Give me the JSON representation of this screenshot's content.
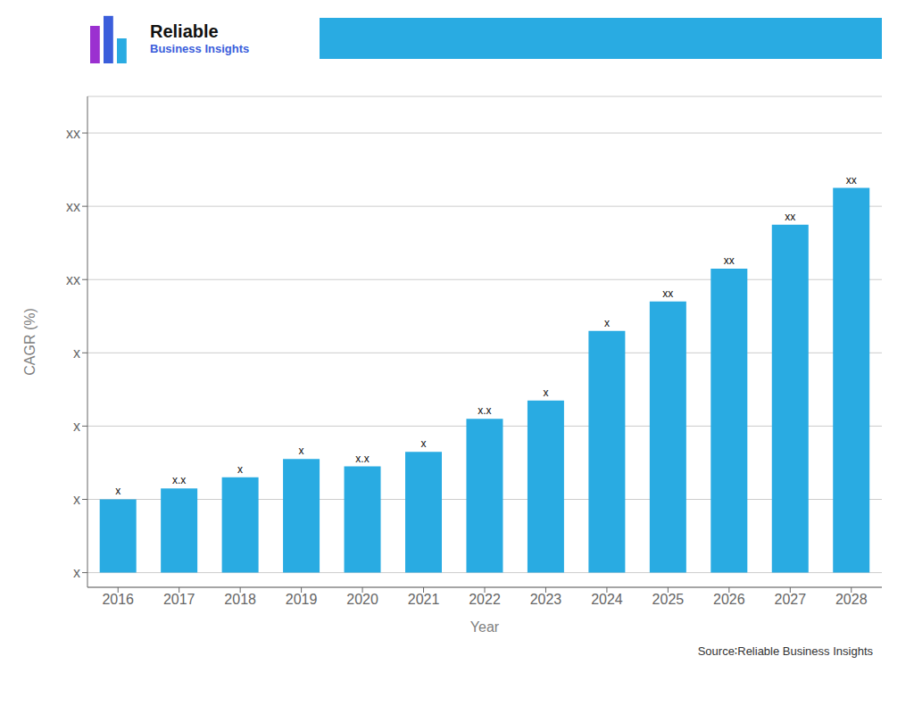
{
  "chart_data": {
    "type": "bar",
    "categories": [
      "2016",
      "2017",
      "2018",
      "2019",
      "2020",
      "2021",
      "2022",
      "2023",
      "2024",
      "2025",
      "2026",
      "2027",
      "2028"
    ],
    "values": [
      1.0,
      1.15,
      1.3,
      1.55,
      1.45,
      1.65,
      2.1,
      2.35,
      3.3,
      3.7,
      4.15,
      4.75,
      5.25
    ],
    "value_labels": [
      "x",
      "x.x",
      "x",
      "x",
      "x.x",
      "x",
      "x.x",
      "x",
      "x",
      "xx",
      "xx",
      "xx",
      "xx"
    ],
    "color": "#29ABE2",
    "xlabel": "Year",
    "ylabel": "CAGR (%)",
    "ylim": [
      -0.2,
      6.5
    ],
    "yticks": [
      {
        "value": 0,
        "label": "x"
      },
      {
        "value": 1,
        "label": "x"
      },
      {
        "value": 2,
        "label": "x"
      },
      {
        "value": 3,
        "label": "x"
      },
      {
        "value": 4,
        "label": "xx"
      },
      {
        "value": 5,
        "label": "xx"
      },
      {
        "value": 6,
        "label": "xx"
      }
    ],
    "grid": true,
    "data_labels": true,
    "annotations": [
      "Reliable",
      "Business Insights",
      "Source∶Reliable Business Insights"
    ]
  }
}
